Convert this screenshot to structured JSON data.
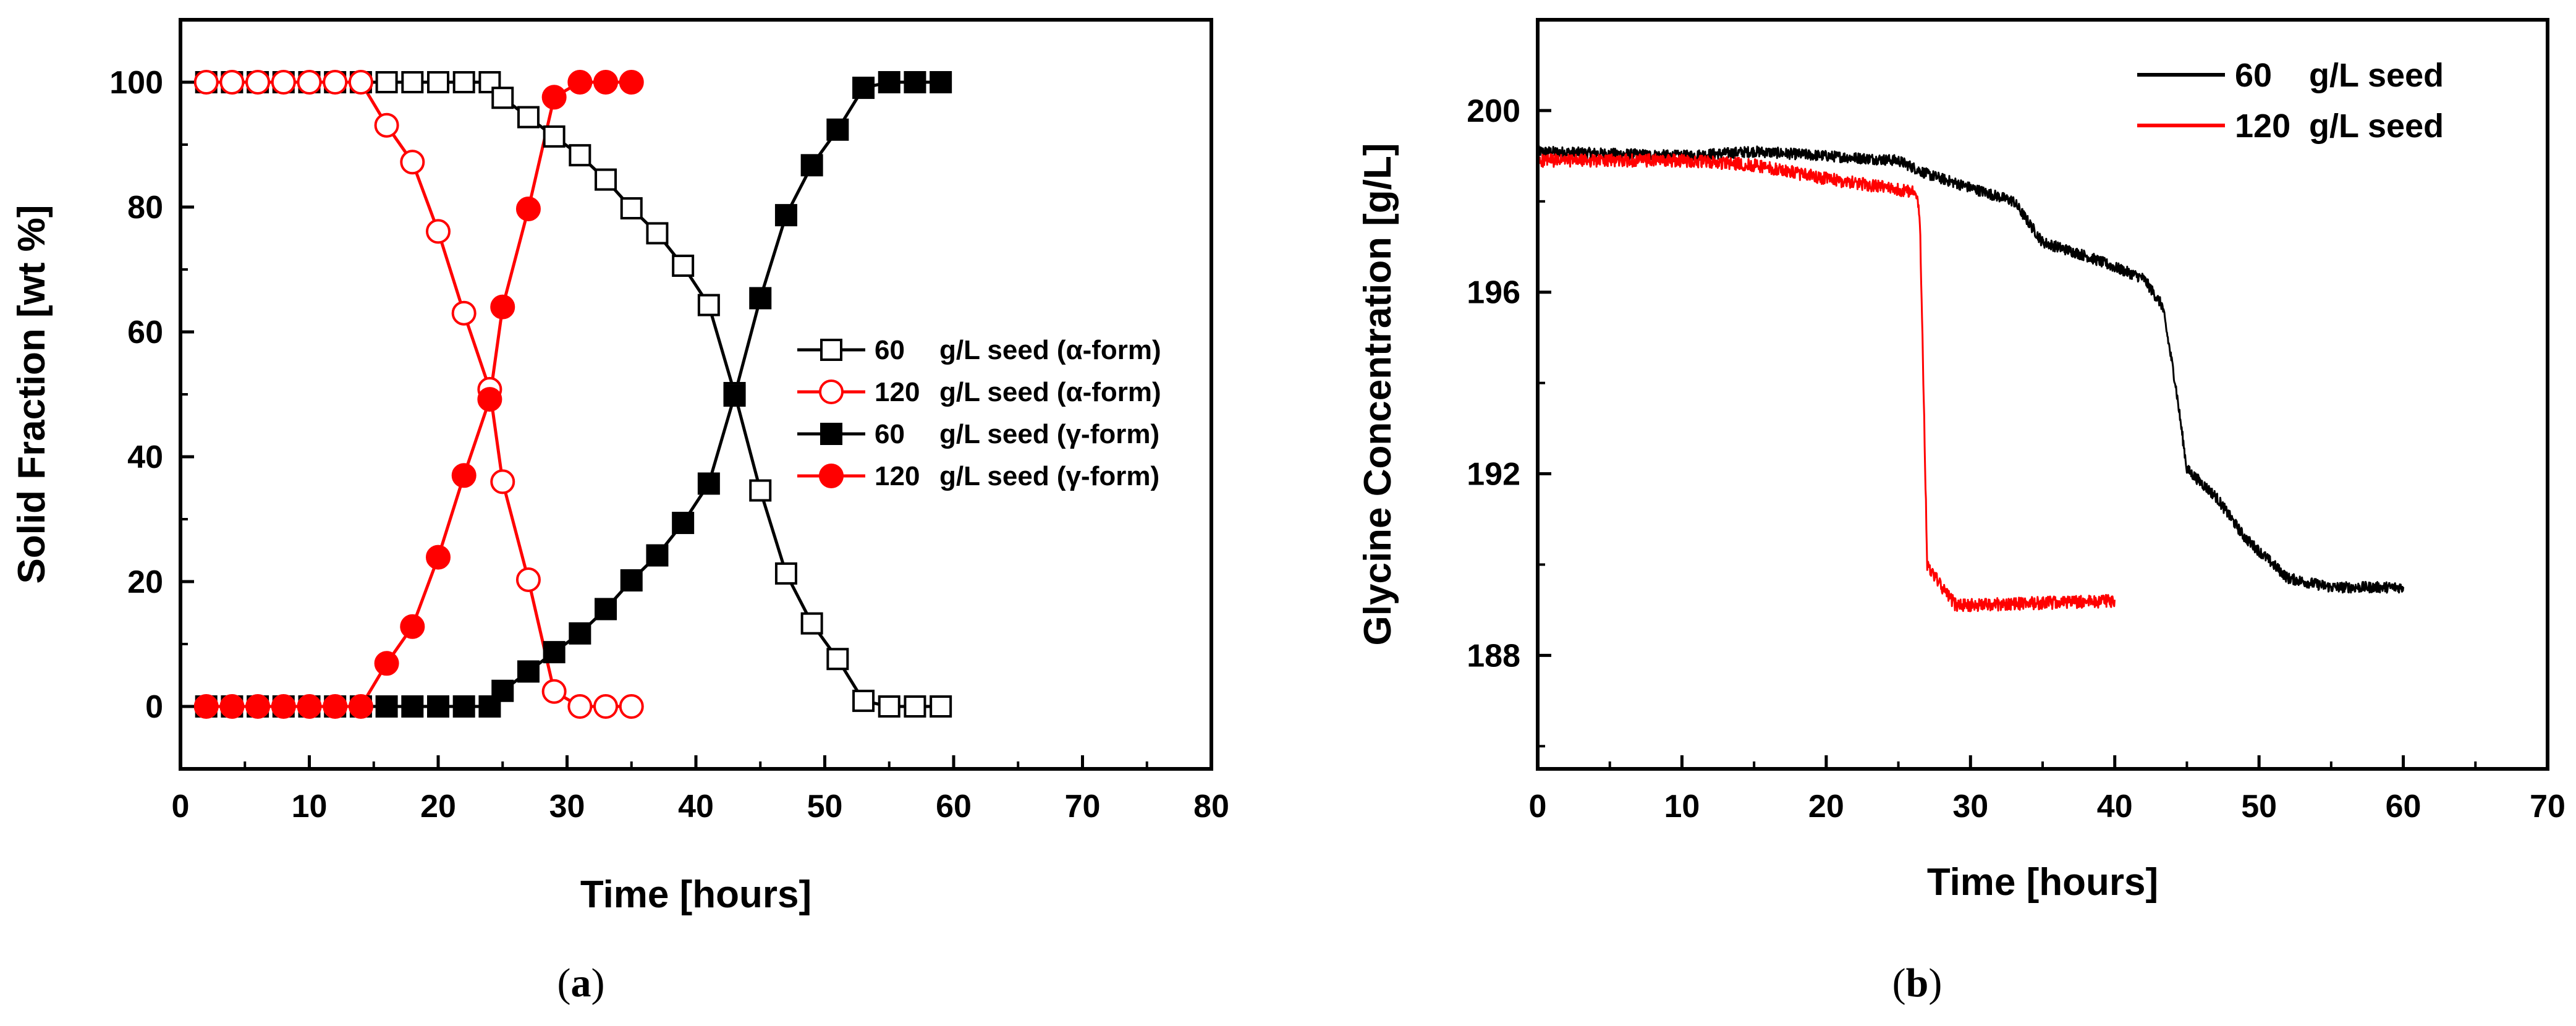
{
  "chart_data": [
    {
      "id": "a",
      "type": "line",
      "panel_label_prefix": "(",
      "panel_label_letter": "a",
      "panel_label_suffix": ")",
      "xlabel": "Time [hours]",
      "ylabel": "Solid Fraction [wt %]",
      "xlim": [
        0,
        80
      ],
      "ylim": [
        -10,
        110
      ],
      "xticks": [
        0,
        10,
        20,
        30,
        40,
        50,
        60,
        70,
        80
      ],
      "yticks": [
        0,
        20,
        40,
        60,
        80,
        100
      ],
      "grid": false,
      "legend_position": "center-right",
      "series": [
        {
          "name": "60 g/L seed (α-form)",
          "legend_conc": "60",
          "legend_unit": "g/L seed (α-form)",
          "color": "#000000",
          "marker": "square-open",
          "x": [
            2,
            4,
            6,
            8,
            10,
            12,
            14,
            16,
            18,
            20,
            22,
            24,
            25,
            27,
            29,
            31,
            33,
            35,
            37,
            39,
            41,
            43,
            45,
            47,
            49,
            51,
            53,
            55,
            57,
            59
          ],
          "y": [
            100,
            100,
            100,
            100,
            100,
            100,
            100,
            100,
            100,
            100,
            100,
            100,
            97.5,
            94.4,
            91.3,
            88.3,
            84.4,
            79.8,
            75.8,
            70.6,
            64.3,
            50.2,
            34.6,
            21.3,
            13.3,
            7.6,
            0.9,
            0,
            0,
            0
          ]
        },
        {
          "name": "120 g/L seed (α-form)",
          "legend_conc": "120",
          "legend_unit": "g/L seed (α-form)",
          "color": "#ff0000",
          "marker": "circle-open",
          "x": [
            2,
            4,
            6,
            8,
            10,
            12,
            14,
            16,
            18,
            20,
            22,
            24,
            25,
            27,
            29,
            31,
            33,
            35
          ],
          "y": [
            100,
            100,
            100,
            100,
            100,
            100,
            100,
            93.1,
            87.2,
            76.1,
            63.0,
            50.8,
            36.0,
            20.3,
            2.4,
            0,
            0,
            0
          ]
        },
        {
          "name": "60 g/L seed (γ-form)",
          "legend_conc": "60",
          "legend_unit": "g/L seed (γ-form)",
          "color": "#000000",
          "marker": "square-filled",
          "x": [
            2,
            4,
            6,
            8,
            10,
            12,
            14,
            16,
            18,
            20,
            22,
            24,
            25,
            27,
            29,
            31,
            33,
            35,
            37,
            39,
            41,
            43,
            45,
            47,
            49,
            51,
            53,
            55,
            57,
            59
          ],
          "y": [
            0,
            0,
            0,
            0,
            0,
            0,
            0,
            0,
            0,
            0,
            0,
            0,
            2.5,
            5.6,
            8.7,
            11.7,
            15.6,
            20.2,
            24.2,
            29.4,
            35.7,
            49.8,
            65.4,
            78.7,
            86.7,
            92.4,
            99.1,
            100,
            100,
            100
          ]
        },
        {
          "name": "120 g/L seed (γ-form)",
          "legend_conc": "120",
          "legend_unit": "g/L seed (γ-form)",
          "color": "#ff0000",
          "marker": "circle-filled",
          "x": [
            2,
            4,
            6,
            8,
            10,
            12,
            14,
            16,
            18,
            20,
            22,
            24,
            25,
            27,
            29,
            31,
            33,
            35
          ],
          "y": [
            0,
            0,
            0,
            0,
            0,
            0,
            0,
            6.9,
            12.8,
            23.9,
            37.0,
            49.2,
            64.0,
            79.7,
            97.6,
            100,
            100,
            100
          ]
        }
      ]
    },
    {
      "id": "b",
      "type": "line",
      "panel_label_prefix": "(",
      "panel_label_letter": "b",
      "panel_label_suffix": ")",
      "xlabel": "Time [hours]",
      "ylabel": "Glycine Concentration [g/L]",
      "xlim": [
        0,
        70
      ],
      "ylim": [
        185.5,
        202
      ],
      "xticks": [
        0,
        10,
        20,
        30,
        40,
        50,
        60,
        70
      ],
      "yticks": [
        188,
        192,
        196,
        200
      ],
      "grid": false,
      "legend_position": "top-right",
      "series": [
        {
          "name": "60 g/L seed",
          "legend_conc": "60",
          "legend_unit": "g/L seed",
          "color": "#000000",
          "noise": 0.12,
          "x_end": 60,
          "keypoints": [
            [
              0,
              199.1
            ],
            [
              10,
              199.0
            ],
            [
              15,
              199.1
            ],
            [
              25,
              198.9
            ],
            [
              27,
              198.6
            ],
            [
              30,
              198.3
            ],
            [
              33,
              198.0
            ],
            [
              35,
              197.1
            ],
            [
              38,
              196.8
            ],
            [
              42,
              196.3
            ],
            [
              43.3,
              195.7
            ],
            [
              44.2,
              194.0
            ],
            [
              45.0,
              192.1
            ],
            [
              47.0,
              191.5
            ],
            [
              49.0,
              190.6
            ],
            [
              52.0,
              189.7
            ],
            [
              55.0,
              189.5
            ],
            [
              60.0,
              189.5
            ]
          ]
        },
        {
          "name": "120 g/L seed",
          "legend_conc": "120",
          "legend_unit": "g/L seed",
          "color": "#ff0000",
          "noise": 0.14,
          "x_end": 40,
          "keypoints": [
            [
              0,
              198.9
            ],
            [
              10,
              198.9
            ],
            [
              15,
              198.8
            ],
            [
              20,
              198.5
            ],
            [
              26.3,
              198.2
            ],
            [
              26.5,
              197.5
            ],
            [
              27.0,
              190.0
            ],
            [
              28.0,
              189.5
            ],
            [
              29.0,
              189.1
            ],
            [
              40.0,
              189.2
            ]
          ]
        }
      ]
    }
  ]
}
